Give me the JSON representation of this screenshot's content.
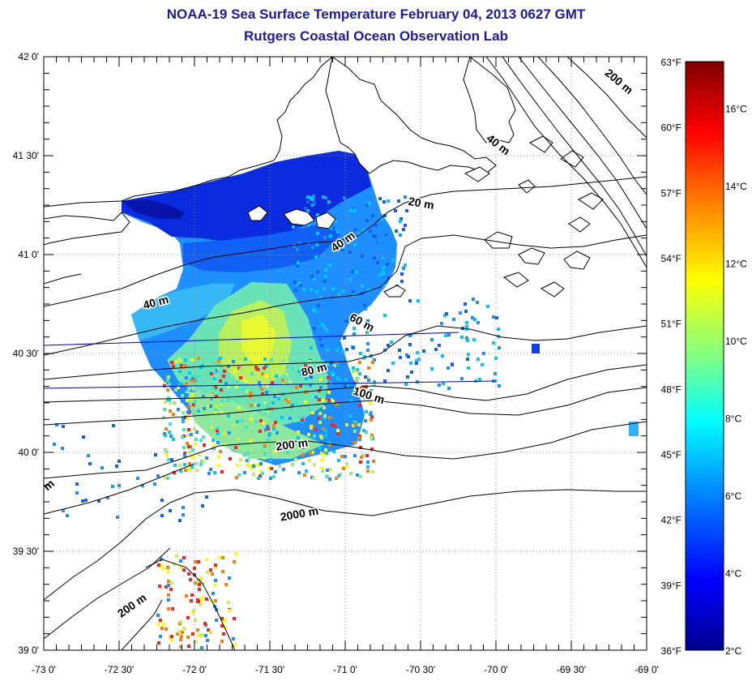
{
  "title": "NOAA-19 Sea Surface Temperature February 04, 2013 0627 GMT",
  "subtitle": "Rutgers Coastal Ocean Observation Lab",
  "map": {
    "lon_labels": [
      "-73 0'",
      "-72 30'",
      "-72 0'",
      "-71 30'",
      "-71 0'",
      "-70 30'",
      "-70 0'",
      "-69 30'",
      "-69 0'"
    ],
    "lon_values": [
      -73.0,
      -72.5,
      -72.0,
      -71.5,
      -71.0,
      -70.5,
      -70.0,
      -69.5,
      -69.0
    ],
    "lat_labels": [
      "42 0'",
      "41 30'",
      "41 0'",
      "40 30'",
      "40 0'",
      "39 30'",
      "39 0'"
    ],
    "lat_values": [
      42.0,
      41.5,
      41.0,
      40.5,
      40.0,
      39.5,
      39.0
    ],
    "lon_range": [
      -73.0,
      -69.0
    ],
    "lat_range": [
      39.0,
      42.0
    ],
    "depth_labels": [
      {
        "text": "200 m",
        "lon": -69.2,
        "lat": 41.86,
        "angle": 40
      },
      {
        "text": "40 m",
        "lon": -70.0,
        "lat": 41.54,
        "angle": 38
      },
      {
        "text": "20 m",
        "lon": -70.5,
        "lat": 41.24,
        "angle": 10
      },
      {
        "text": "40 m",
        "lon": -71.0,
        "lat": 41.05,
        "angle": -35
      },
      {
        "text": "40 m",
        "lon": -72.25,
        "lat": 40.74,
        "angle": -15
      },
      {
        "text": "60 m",
        "lon": -70.9,
        "lat": 40.64,
        "angle": 28
      },
      {
        "text": "80 m",
        "lon": -71.2,
        "lat": 40.4,
        "angle": -14
      },
      {
        "text": "100 m",
        "lon": -70.85,
        "lat": 40.27,
        "angle": 18
      },
      {
        "text": "200 m",
        "lon": -71.35,
        "lat": 40.02,
        "angle": -8
      },
      {
        "text": "2000 m",
        "lon": -71.3,
        "lat": 39.67,
        "angle": -10
      },
      {
        "text": "200 m",
        "lon": -72.4,
        "lat": 39.21,
        "angle": -35
      },
      {
        "text": "m",
        "lon": -72.95,
        "lat": 39.82,
        "angle": -40
      }
    ]
  },
  "colorbar": {
    "f_labels": [
      "63°F",
      "60°F",
      "57°F",
      "54°F",
      "51°F",
      "48°F",
      "45°F",
      "42°F",
      "39°F",
      "36°F"
    ],
    "f_values": [
      63,
      60,
      57,
      54,
      51,
      48,
      45,
      42,
      39,
      36
    ],
    "c_labels": [
      "16°C",
      "14°C",
      "12°C",
      "10°C",
      "8°C",
      "6°C",
      "4°C",
      "2°C"
    ],
    "c_values": [
      16,
      14,
      12,
      10,
      8,
      6,
      4,
      2
    ],
    "range_c": [
      2.0,
      17.2
    ],
    "colors": [
      "#00008f",
      "#0000ff",
      "#0080ff",
      "#00ffff",
      "#80ff80",
      "#ffff00",
      "#ff8000",
      "#ff0000",
      "#800000"
    ]
  },
  "colors": {
    "title": "#1a1aa6",
    "coast": "#000000",
    "grid": "#8c8c8c",
    "tracks": "#0000cc"
  }
}
